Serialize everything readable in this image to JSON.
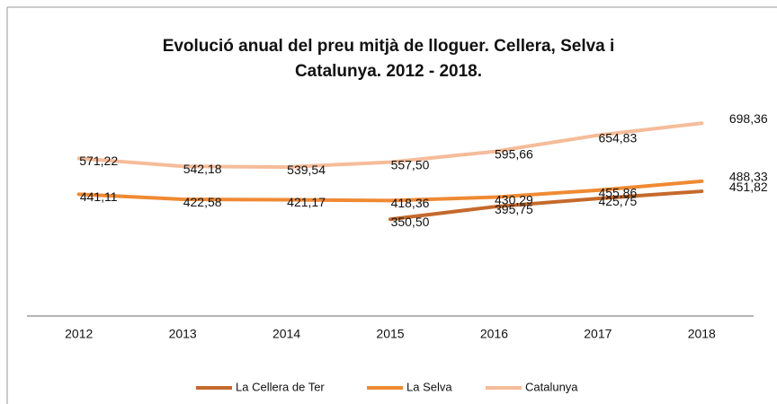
{
  "chart_data": {
    "type": "line",
    "title": [
      "Evolució  anual del preu mitjà de lloguer. Cellera, Selva i",
      "Catalunya. 2012 - 2018."
    ],
    "categories": [
      "2012",
      "2013",
      "2014",
      "2015",
      "2016",
      "2017",
      "2018"
    ],
    "ylim": [
      0,
      800
    ],
    "series": [
      {
        "name": "La Cellera de Ter",
        "color": "#c46a2c",
        "values": [
          null,
          null,
          null,
          350.5,
          395.75,
          425.75,
          451.82
        ],
        "value_labels": [
          null,
          null,
          null,
          "350,50",
          "395,75",
          "425,75",
          "451,82"
        ]
      },
      {
        "name": "La Selva",
        "color": "#ef8a33",
        "values": [
          441.11,
          422.58,
          421.17,
          418.36,
          430.29,
          455.86,
          488.33
        ],
        "value_labels": [
          "441,11",
          "422,58",
          "421,17",
          "418,36",
          "430,29",
          "455,86",
          "488,33"
        ]
      },
      {
        "name": "Catalunya",
        "color": "#f5bc9a",
        "values": [
          571.22,
          542.18,
          539.54,
          557.5,
          595.66,
          654.83,
          698.36
        ],
        "value_labels": [
          "571,22",
          "542,18",
          "539,54",
          "557,50",
          "595,66",
          "654,83",
          "698,36"
        ]
      }
    ],
    "legend": "bottom"
  }
}
